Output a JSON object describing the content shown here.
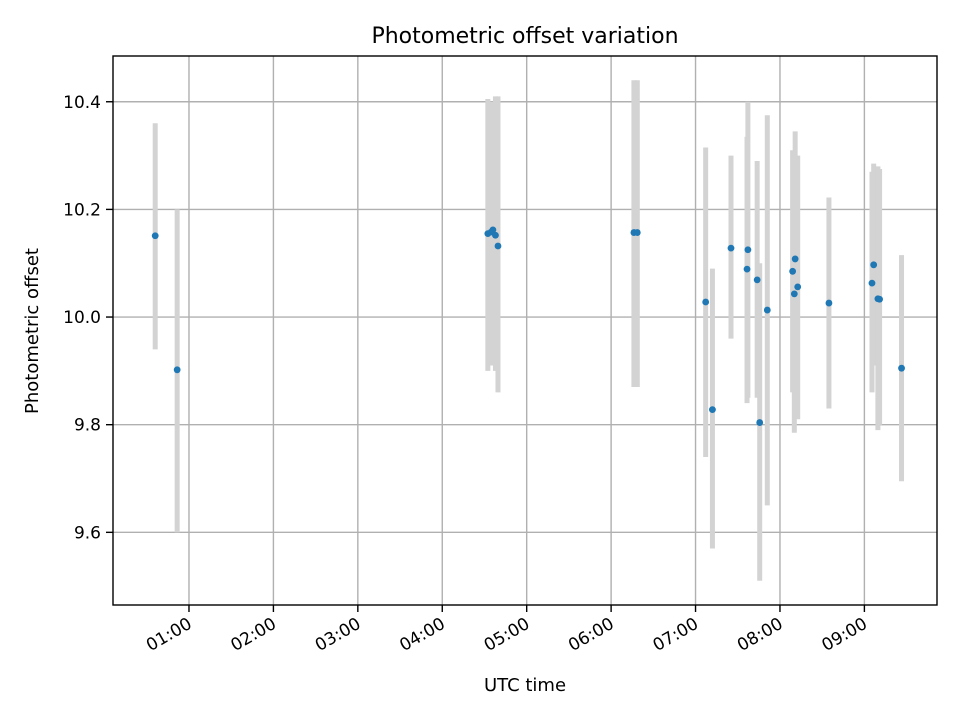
{
  "chart_data": {
    "type": "scatter",
    "title": "Photometric offset variation",
    "xlabel": "UTC time",
    "ylabel": "Photometric offset",
    "x_unit": "hours UTC",
    "xlim": [
      0.1,
      9.86
    ],
    "ylim": [
      9.465,
      10.485
    ],
    "x_ticks": [
      {
        "value": 1,
        "label": "01:00"
      },
      {
        "value": 2,
        "label": "02:00"
      },
      {
        "value": 3,
        "label": "03:00"
      },
      {
        "value": 4,
        "label": "04:00"
      },
      {
        "value": 5,
        "label": "05:00"
      },
      {
        "value": 6,
        "label": "06:00"
      },
      {
        "value": 7,
        "label": "07:00"
      },
      {
        "value": 8,
        "label": "08:00"
      },
      {
        "value": 9,
        "label": "09:00"
      }
    ],
    "y_ticks": [
      {
        "value": 9.6,
        "label": "9.6"
      },
      {
        "value": 9.8,
        "label": "9.8"
      },
      {
        "value": 10.0,
        "label": "10.0"
      },
      {
        "value": 10.2,
        "label": "10.2"
      },
      {
        "value": 10.4,
        "label": "10.4"
      }
    ],
    "grid": true,
    "errorbar_color": "#d3d3d3",
    "point_color": "#1f77b4",
    "points": [
      {
        "x": 0.6,
        "y": 10.151,
        "ylow": 9.94,
        "yhigh": 10.36
      },
      {
        "x": 0.86,
        "y": 9.902,
        "ylow": 9.6,
        "yhigh": 10.2
      },
      {
        "x": 4.54,
        "y": 10.155,
        "ylow": 9.9,
        "yhigh": 10.405
      },
      {
        "x": 4.58,
        "y": 10.158,
        "ylow": 9.91,
        "yhigh": 10.4
      },
      {
        "x": 4.6,
        "y": 10.162,
        "ylow": 9.93,
        "yhigh": 10.39
      },
      {
        "x": 4.63,
        "y": 10.152,
        "ylow": 9.9,
        "yhigh": 10.41
      },
      {
        "x": 4.66,
        "y": 10.132,
        "ylow": 9.86,
        "yhigh": 10.41
      },
      {
        "x": 6.27,
        "y": 10.157,
        "ylow": 9.87,
        "yhigh": 10.44
      },
      {
        "x": 6.31,
        "y": 10.157,
        "ylow": 9.87,
        "yhigh": 10.44
      },
      {
        "x": 7.12,
        "y": 10.028,
        "ylow": 9.74,
        "yhigh": 10.315
      },
      {
        "x": 7.2,
        "y": 9.828,
        "ylow": 9.57,
        "yhigh": 10.09
      },
      {
        "x": 7.42,
        "y": 10.128,
        "ylow": 9.96,
        "yhigh": 10.3
      },
      {
        "x": 7.62,
        "y": 10.125,
        "ylow": 9.85,
        "yhigh": 10.4
      },
      {
        "x": 7.61,
        "y": 10.089,
        "ylow": 9.84,
        "yhigh": 10.335
      },
      {
        "x": 7.73,
        "y": 10.069,
        "ylow": 9.85,
        "yhigh": 10.29
      },
      {
        "x": 7.76,
        "y": 9.804,
        "ylow": 9.51,
        "yhigh": 10.1
      },
      {
        "x": 7.85,
        "y": 10.013,
        "ylow": 9.65,
        "yhigh": 10.375
      },
      {
        "x": 8.15,
        "y": 10.085,
        "ylow": 9.86,
        "yhigh": 10.31
      },
      {
        "x": 8.17,
        "y": 10.043,
        "ylow": 9.785,
        "yhigh": 10.3
      },
      {
        "x": 8.18,
        "y": 10.108,
        "ylow": 9.87,
        "yhigh": 10.345
      },
      {
        "x": 8.21,
        "y": 10.056,
        "ylow": 9.81,
        "yhigh": 10.3
      },
      {
        "x": 8.58,
        "y": 10.026,
        "ylow": 9.83,
        "yhigh": 10.222
      },
      {
        "x": 9.09,
        "y": 10.063,
        "ylow": 9.86,
        "yhigh": 10.27
      },
      {
        "x": 9.11,
        "y": 10.097,
        "ylow": 9.91,
        "yhigh": 10.285
      },
      {
        "x": 9.16,
        "y": 10.034,
        "ylow": 9.79,
        "yhigh": 10.28
      },
      {
        "x": 9.18,
        "y": 10.033,
        "ylow": 9.8,
        "yhigh": 10.275
      },
      {
        "x": 9.44,
        "y": 9.905,
        "ylow": 9.695,
        "yhigh": 10.115
      }
    ]
  }
}
